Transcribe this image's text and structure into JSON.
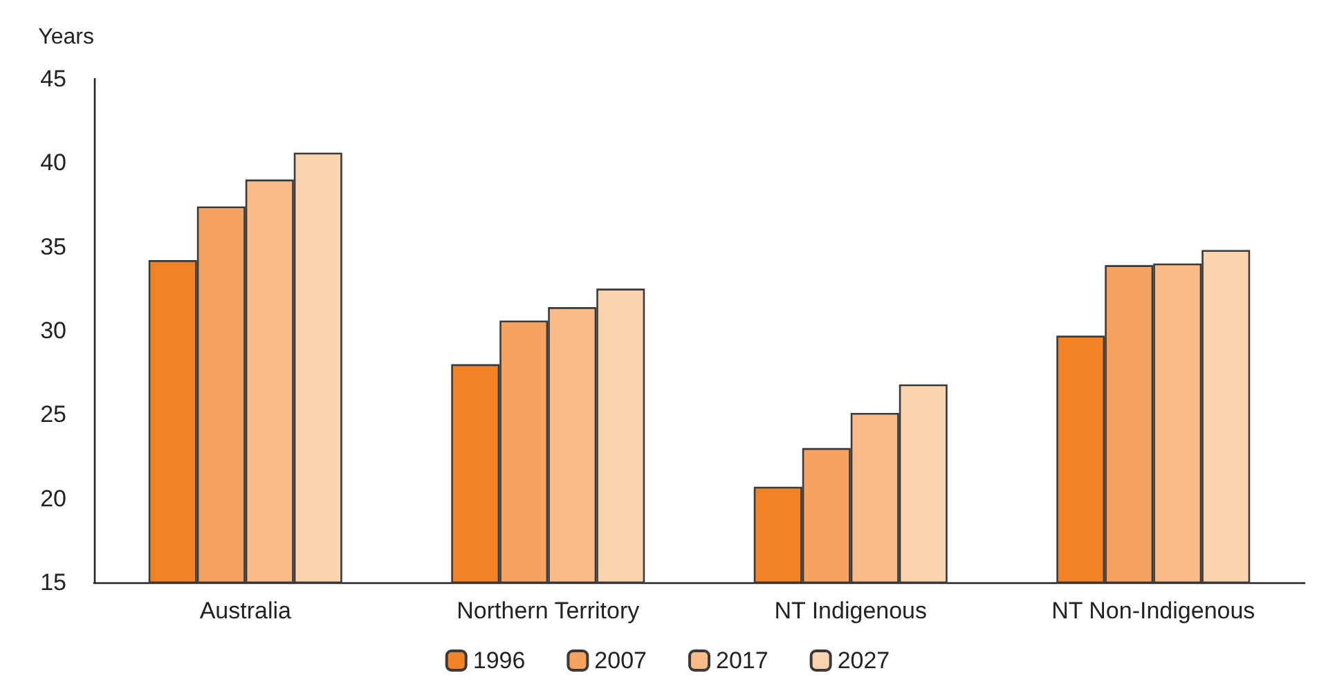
{
  "chart_data": {
    "type": "bar",
    "ylabel": "Years",
    "categories": [
      "Australia",
      "Northern Territory",
      "NT Indigenous",
      "NT Non-Indigenous"
    ],
    "series": [
      {
        "name": "1996",
        "color": "#f28226",
        "values": [
          34.2,
          28.0,
          20.7,
          29.7
        ]
      },
      {
        "name": "2007",
        "color": "#f8a25f",
        "values": [
          37.4,
          30.6,
          23.0,
          33.9
        ]
      },
      {
        "name": "2017",
        "color": "#f9bb87",
        "values": [
          39.0,
          31.4,
          25.1,
          34.0
        ]
      },
      {
        "name": "2027",
        "color": "#fbd3b0",
        "values": [
          40.6,
          32.5,
          26.8,
          34.8
        ]
      }
    ],
    "ylim": [
      15,
      45
    ],
    "yticks": [
      15,
      20,
      25,
      30,
      35,
      40,
      45
    ],
    "grid": false,
    "legend": "bottom"
  }
}
